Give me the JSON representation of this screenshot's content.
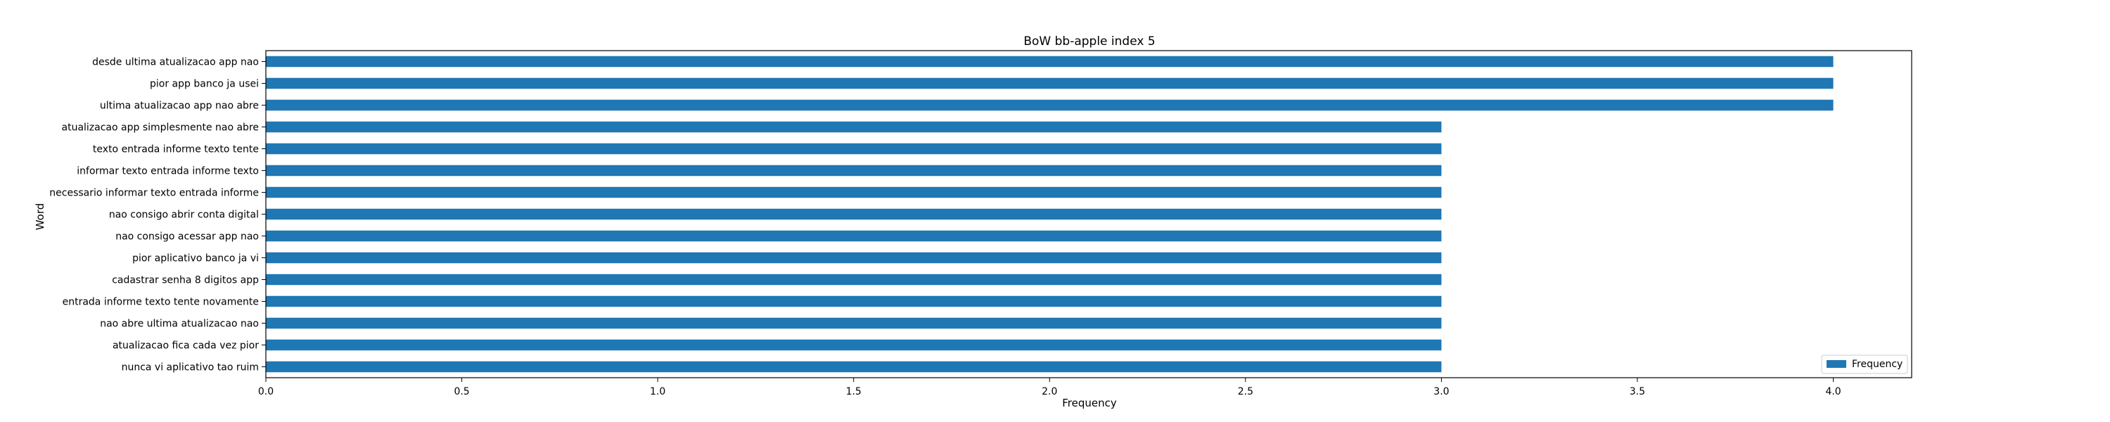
{
  "chart_data": {
    "type": "bar",
    "orientation": "horizontal",
    "title": "BoW bb-apple index 5",
    "xlabel": "Frequency",
    "ylabel": "Word",
    "xlim": [
      0,
      4.2
    ],
    "x_ticks": [
      "0.0",
      "0.5",
      "1.0",
      "1.5",
      "2.0",
      "2.5",
      "3.0",
      "3.5",
      "4.0"
    ],
    "grid": false,
    "legend_position": "bottom-right",
    "bar_color": "#1f77b4",
    "categories": [
      "desde ultima atualizacao app nao",
      "pior app banco ja usei",
      "ultima atualizacao app nao abre",
      "atualizacao app simplesmente nao abre",
      "texto entrada informe texto tente",
      "informar texto entrada informe texto",
      "necessario informar texto entrada informe",
      "nao consigo abrir conta digital",
      "nao consigo acessar app nao",
      "pior aplicativo banco ja vi",
      "cadastrar senha 8 digitos app",
      "entrada informe texto tente novamente",
      "nao abre ultima atualizacao nao",
      "atualizacao fica cada vez pior",
      "nunca vi aplicativo tao ruim"
    ],
    "series": [
      {
        "name": "Frequency",
        "values": [
          4,
          4,
          4,
          3,
          3,
          3,
          3,
          3,
          3,
          3,
          3,
          3,
          3,
          3,
          3
        ]
      }
    ]
  }
}
